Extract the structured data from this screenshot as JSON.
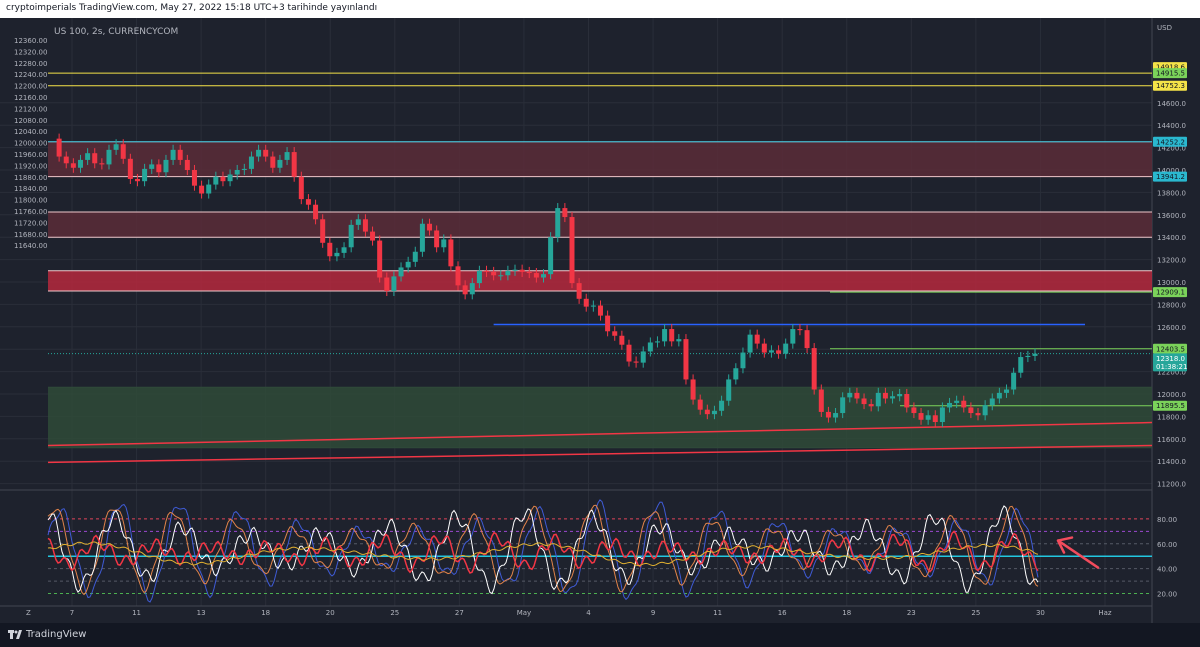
{
  "header": {
    "published": "cryptoimperials TradingView.com, May 27, 2022 15:18 UTC+3 tarihinde yayınlandı"
  },
  "brand": {
    "name": "TradingView"
  },
  "chart_data": {
    "type": "candlestick",
    "symbol": "US 100, 2s, CURRENCYCOM",
    "currency": "USD",
    "left_axis": {
      "ticks": [
        12360,
        12320,
        12280,
        12240,
        12200,
        12160,
        12120,
        12080,
        12040,
        12000,
        11960,
        11920,
        11880,
        11840,
        11800,
        11760,
        11720,
        11680,
        11640
      ]
    },
    "right_axis": {
      "range": [
        11000,
        15000
      ],
      "ticks": [
        "14600.0",
        "14400.0",
        "14200.0",
        "14000.0",
        "13800.0",
        "13600.0",
        "13400.0",
        "13200.0",
        "13000.0",
        "12800.0",
        "12600.0",
        "12400.0",
        "12200.0",
        "12000.0",
        "11800.0",
        "11600.0",
        "11400.0",
        "11200.0"
      ]
    },
    "x_axis": {
      "labels": [
        "7",
        "11",
        "13",
        "18",
        "20",
        "25",
        "27",
        "May",
        "4",
        "9",
        "11",
        "16",
        "18",
        "23",
        "25",
        "30",
        "Haz"
      ]
    },
    "price_badges": [
      {
        "value": "14918.6",
        "price": 14918.6,
        "color": "#f5e348"
      },
      {
        "value": "14915.5",
        "price": 14865,
        "color": "#7bd35a"
      },
      {
        "value": "14752.3",
        "price": 14752.3,
        "color": "#f5e348"
      },
      {
        "value": "14252.2",
        "price": 14252.2,
        "color": "#2ab8cf"
      },
      {
        "value": "13941.2",
        "price": 13941.2,
        "color": "#2ab8cf"
      },
      {
        "value": "12909.1",
        "price": 12909.1,
        "color": "#7bd35a"
      },
      {
        "value": "12403.5",
        "price": 12403.5,
        "color": "#7bd35a"
      },
      {
        "value": "12318.0",
        "price": 12318.0,
        "color": "#26a69a",
        "countdown": "01:38:21"
      },
      {
        "value": "11895.5",
        "price": 11895.5,
        "color": "#7bd35a"
      }
    ],
    "zones": [
      {
        "from": 13941.2,
        "to": 14252.2,
        "fill": "#5a2b38",
        "edge": "#f0c8cc"
      },
      {
        "from": 13400,
        "to": 13625,
        "fill": "#5a2b38",
        "edge": "#f0c8cc"
      },
      {
        "from": 12920,
        "to": 13100,
        "fill": "#b5283d",
        "edge": "#f0c8cc"
      },
      {
        "from": 11520,
        "to": 12060,
        "fill": "#2f4a38",
        "edge": "#2f4a38"
      }
    ],
    "horizontal_lines": [
      {
        "price": 14865,
        "color": "#f5e348"
      },
      {
        "price": 14752.3,
        "color": "#f5e348"
      },
      {
        "price": 14252.2,
        "color": "#2ab8cf"
      },
      {
        "price": 12909.1,
        "color": "#7bd35a"
      },
      {
        "price": 12403.5,
        "color": "#7bd35a"
      },
      {
        "price": 11895.5,
        "color": "#7bd35a"
      }
    ],
    "resistance_segment": {
      "price": 12620,
      "from_index": 62,
      "to_index": 118,
      "color": "#2962ff"
    },
    "trendlines": [
      {
        "from_price": 11540,
        "to_price": 11745,
        "color": "#f23645"
      },
      {
        "from_price": 11390,
        "to_price": 11540,
        "color": "#f23645"
      }
    ],
    "candles": [
      14280,
      14120,
      14060,
      14020,
      14090,
      14150,
      14060,
      14050,
      14180,
      14230,
      14100,
      13920,
      13900,
      14010,
      14050,
      13980,
      14090,
      14180,
      14090,
      14000,
      13860,
      13790,
      13870,
      13940,
      13900,
      13960,
      14000,
      14010,
      14120,
      14180,
      14120,
      14020,
      14090,
      14160,
      13940,
      13740,
      13690,
      13560,
      13350,
      13230,
      13260,
      13310,
      13510,
      13560,
      13450,
      13370,
      13040,
      12920,
      13050,
      13130,
      13180,
      13270,
      13520,
      13460,
      13310,
      13380,
      13140,
      12970,
      12890,
      12990,
      13100,
      13090,
      13060,
      13060,
      13100,
      13110,
      13090,
      13080,
      13040,
      13070,
      13400,
      13660,
      13580,
      12990,
      12850,
      12780,
      12790,
      12700,
      12560,
      12520,
      12440,
      12290,
      12280,
      12380,
      12460,
      12470,
      12580,
      12470,
      12490,
      12130,
      11950,
      11860,
      11820,
      11850,
      11940,
      12130,
      12230,
      12370,
      12530,
      12450,
      12370,
      12390,
      12360,
      12450,
      12580,
      12570,
      12410,
      12040,
      11840,
      11790,
      11830,
      11970,
      12010,
      11960,
      11910,
      11890,
      12010,
      11960,
      11980,
      12000,
      11880,
      11830,
      11770,
      11810,
      11750,
      11880,
      11920,
      11940,
      11880,
      11830,
      11810,
      11900,
      11960,
      12010,
      12040,
      12190,
      12330,
      12340,
      12360
    ],
    "oscillator": {
      "levels": [
        80,
        70,
        60,
        40,
        30,
        20
      ],
      "level_labels": [
        "80.00",
        "60.00",
        "40.00",
        "20.00"
      ],
      "cyan_level": 50,
      "range": [
        10,
        100
      ]
    },
    "annotation": {
      "type": "arrow",
      "color": "#f24b5c",
      "target_value": 65
    }
  }
}
